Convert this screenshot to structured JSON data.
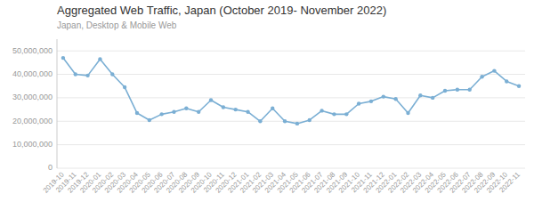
{
  "chart_data": {
    "type": "line",
    "title": "Aggregated Web Traffic, Japan (October 2019- November 2022)",
    "subtitle": "Japan, Desktop & Mobile Web",
    "categories": [
      "2019-10",
      "2019-11",
      "2019-12",
      "2020-01",
      "2020-02",
      "2020-03",
      "2020-04",
      "2020-05",
      "2020-06",
      "2020-07",
      "2020-08",
      "2020-09",
      "2020-10",
      "2020-11",
      "2020-12",
      "2021-01",
      "2021-02",
      "2021-03",
      "2021-04",
      "2021-05",
      "2021-06",
      "2021-07",
      "2021-08",
      "2021-09",
      "2021-10",
      "2021-11",
      "2021-12",
      "2022-01",
      "2022-02",
      "2022-03",
      "2022-04",
      "2022-05",
      "2022-06",
      "2022-07",
      "2022-08",
      "2022-09",
      "2022-10",
      "2022-11"
    ],
    "values": [
      47000000,
      40000000,
      39500000,
      46500000,
      40000000,
      34500000,
      23500000,
      20500000,
      23000000,
      24000000,
      25500000,
      24000000,
      29000000,
      26000000,
      25000000,
      24000000,
      20000000,
      25500000,
      20000000,
      19000000,
      20500000,
      24500000,
      23000000,
      23000000,
      27500000,
      28500000,
      30500000,
      29500000,
      23500000,
      31000000,
      30000000,
      33000000,
      33500000,
      33500000,
      39000000,
      41500000,
      37000000,
      35000000
    ],
    "color": "#7bafd4",
    "marker": "circle",
    "ylim": [
      0,
      55000000
    ],
    "yticks": [
      0,
      {
        "value": 10000000,
        "label": "10,000,000"
      },
      {
        "value": 20000000,
        "label": "20,000,000"
      },
      {
        "value": 30000000,
        "label": "30,000,000"
      },
      {
        "value": 40000000,
        "label": "40,000,000"
      },
      {
        "value": 50000000,
        "label": "50,000,000"
      }
    ],
    "grid": true
  }
}
